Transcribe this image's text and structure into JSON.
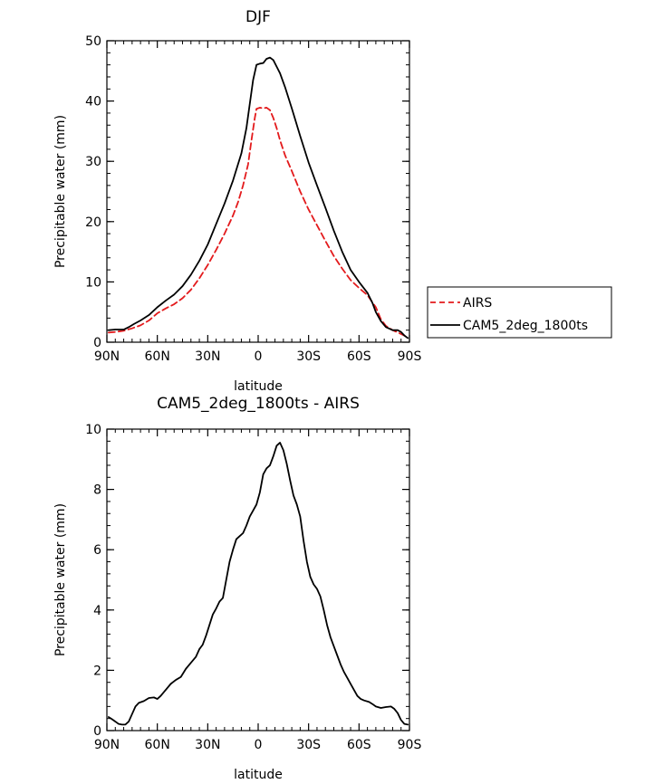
{
  "chart_data": [
    {
      "type": "line",
      "title": "DJF",
      "xlabel": "latitude",
      "ylabel": "Precipitable water (mm)",
      "xlim": [
        90,
        -90
      ],
      "ylim": [
        0,
        50
      ],
      "x_ticks": [
        {
          "value": 90,
          "label": "90N"
        },
        {
          "value": 60,
          "label": "60N"
        },
        {
          "value": 30,
          "label": "30N"
        },
        {
          "value": 0,
          "label": "0"
        },
        {
          "value": -30,
          "label": "30S"
        },
        {
          "value": -60,
          "label": "60S"
        },
        {
          "value": -90,
          "label": "90S"
        }
      ],
      "y_ticks": [
        0,
        10,
        20,
        30,
        40,
        50
      ],
      "legend_position": "right",
      "series": [
        {
          "name": "AIRS",
          "color": "#e31a1c",
          "dash": "dashed",
          "points": [
            [
              89,
              1.6
            ],
            [
              85,
              1.7
            ],
            [
              80,
              1.9
            ],
            [
              75,
              2.3
            ],
            [
              70,
              2.8
            ],
            [
              65,
              3.6
            ],
            [
              60,
              4.8
            ],
            [
              55,
              5.6
            ],
            [
              50,
              6.3
            ],
            [
              45,
              7.3
            ],
            [
              40,
              8.7
            ],
            [
              35,
              10.6
            ],
            [
              30,
              12.8
            ],
            [
              25,
              15.3
            ],
            [
              20,
              18.0
            ],
            [
              15,
              21.0
            ],
            [
              12,
              23.2
            ],
            [
              9,
              26.0
            ],
            [
              6,
              29.5
            ],
            [
              4,
              33.5
            ],
            [
              2,
              37.2
            ],
            [
              1,
              38.7
            ],
            [
              -1,
              38.9
            ],
            [
              -3,
              38.8
            ],
            [
              -5,
              38.9
            ],
            [
              -7,
              38.5
            ],
            [
              -9,
              37.2
            ],
            [
              -11,
              35.5
            ],
            [
              -13,
              33.5
            ],
            [
              -16,
              31.0
            ],
            [
              -20,
              28.4
            ],
            [
              -25,
              25.0
            ],
            [
              -30,
              22.0
            ],
            [
              -35,
              19.4
            ],
            [
              -40,
              16.8
            ],
            [
              -45,
              14.3
            ],
            [
              -50,
              12.2
            ],
            [
              -55,
              10.3
            ],
            [
              -60,
              9.0
            ],
            [
              -65,
              7.8
            ],
            [
              -70,
              5.8
            ],
            [
              -73,
              3.8
            ],
            [
              -76,
              2.7
            ],
            [
              -80,
              2.0
            ],
            [
              -84,
              1.5
            ],
            [
              -87,
              1.1
            ],
            [
              -89,
              0.8
            ]
          ]
        },
        {
          "name": "CAM5_2deg_1800ts",
          "color": "#000000",
          "dash": "solid",
          "points": [
            [
              89,
              2.0
            ],
            [
              85,
              2.1
            ],
            [
              80,
              2.1
            ],
            [
              77,
              2.5
            ],
            [
              74,
              3.0
            ],
            [
              70,
              3.6
            ],
            [
              65,
              4.5
            ],
            [
              60,
              5.8
            ],
            [
              55,
              6.9
            ],
            [
              50,
              7.9
            ],
            [
              45,
              9.3
            ],
            [
              40,
              11.2
            ],
            [
              35,
              13.5
            ],
            [
              30,
              16.2
            ],
            [
              25,
              19.6
            ],
            [
              20,
              23.0
            ],
            [
              15,
              26.8
            ],
            [
              10,
              31.3
            ],
            [
              7,
              35.5
            ],
            [
              5,
              39.5
            ],
            [
              3,
              43.5
            ],
            [
              1,
              46.0
            ],
            [
              -1,
              46.2
            ],
            [
              -3,
              46.3
            ],
            [
              -5,
              47.0
            ],
            [
              -7,
              47.2
            ],
            [
              -9,
              46.8
            ],
            [
              -11,
              45.7
            ],
            [
              -13,
              44.6
            ],
            [
              -16,
              42.3
            ],
            [
              -20,
              38.8
            ],
            [
              -25,
              34.2
            ],
            [
              -30,
              29.8
            ],
            [
              -35,
              26.0
            ],
            [
              -40,
              22.3
            ],
            [
              -45,
              18.5
            ],
            [
              -50,
              15.0
            ],
            [
              -55,
              12.0
            ],
            [
              -60,
              10.0
            ],
            [
              -65,
              8.2
            ],
            [
              -68,
              6.5
            ],
            [
              -70,
              5.0
            ],
            [
              -73,
              3.5
            ],
            [
              -76,
              2.5
            ],
            [
              -80,
              2.0
            ],
            [
              -83,
              2.0
            ],
            [
              -85,
              1.7
            ],
            [
              -87,
              1.1
            ],
            [
              -89,
              0.7
            ]
          ]
        }
      ]
    },
    {
      "type": "line",
      "title": "CAM5_2deg_1800ts - AIRS",
      "xlabel": "latitude",
      "ylabel": "Precipitable water (mm)",
      "xlim": [
        90,
        -90
      ],
      "ylim": [
        0,
        10
      ],
      "x_ticks": [
        {
          "value": 90,
          "label": "90N"
        },
        {
          "value": 60,
          "label": "60N"
        },
        {
          "value": 30,
          "label": "30N"
        },
        {
          "value": 0,
          "label": "0"
        },
        {
          "value": -30,
          "label": "30S"
        },
        {
          "value": -60,
          "label": "60S"
        },
        {
          "value": -90,
          "label": "90S"
        }
      ],
      "y_ticks": [
        0,
        2,
        4,
        6,
        8,
        10
      ],
      "series": [
        {
          "color": "#000000",
          "dash": "solid",
          "points": [
            [
              89,
              0.45
            ],
            [
              87,
              0.38
            ],
            [
              85,
              0.3
            ],
            [
              83,
              0.22
            ],
            [
              81,
              0.2
            ],
            [
              79,
              0.2
            ],
            [
              77,
              0.3
            ],
            [
              75,
              0.55
            ],
            [
              73,
              0.8
            ],
            [
              71,
              0.92
            ],
            [
              68,
              0.98
            ],
            [
              65,
              1.08
            ],
            [
              62,
              1.1
            ],
            [
              60,
              1.05
            ],
            [
              58,
              1.15
            ],
            [
              55,
              1.35
            ],
            [
              52,
              1.55
            ],
            [
              49,
              1.68
            ],
            [
              46,
              1.78
            ],
            [
              43,
              2.05
            ],
            [
              40,
              2.25
            ],
            [
              37,
              2.45
            ],
            [
              35,
              2.7
            ],
            [
              33,
              2.85
            ],
            [
              31,
              3.15
            ],
            [
              29,
              3.5
            ],
            [
              27,
              3.85
            ],
            [
              25,
              4.05
            ],
            [
              23,
              4.28
            ],
            [
              21,
              4.4
            ],
            [
              19,
              5.0
            ],
            [
              17,
              5.6
            ],
            [
              15,
              6.0
            ],
            [
              13,
              6.35
            ],
            [
              11,
              6.45
            ],
            [
              9,
              6.55
            ],
            [
              7,
              6.8
            ],
            [
              5,
              7.1
            ],
            [
              3,
              7.3
            ],
            [
              1,
              7.5
            ],
            [
              -1,
              7.9
            ],
            [
              -3,
              8.5
            ],
            [
              -5,
              8.7
            ],
            [
              -7,
              8.8
            ],
            [
              -9,
              9.1
            ],
            [
              -11,
              9.45
            ],
            [
              -13,
              9.55
            ],
            [
              -15,
              9.3
            ],
            [
              -17,
              8.85
            ],
            [
              -19,
              8.3
            ],
            [
              -21,
              7.8
            ],
            [
              -23,
              7.5
            ],
            [
              -25,
              7.1
            ],
            [
              -27,
              6.3
            ],
            [
              -29,
              5.6
            ],
            [
              -31,
              5.1
            ],
            [
              -33,
              4.85
            ],
            [
              -35,
              4.7
            ],
            [
              -37,
              4.45
            ],
            [
              -39,
              4.0
            ],
            [
              -41,
              3.5
            ],
            [
              -43,
              3.1
            ],
            [
              -45,
              2.8
            ],
            [
              -47,
              2.5
            ],
            [
              -49,
              2.2
            ],
            [
              -51,
              1.95
            ],
            [
              -53,
              1.75
            ],
            [
              -55,
              1.55
            ],
            [
              -57,
              1.35
            ],
            [
              -59,
              1.15
            ],
            [
              -61,
              1.05
            ],
            [
              -63,
              1.0
            ],
            [
              -66,
              0.95
            ],
            [
              -68,
              0.88
            ],
            [
              -70,
              0.8
            ],
            [
              -73,
              0.75
            ],
            [
              -76,
              0.78
            ],
            [
              -79,
              0.8
            ],
            [
              -81,
              0.72
            ],
            [
              -83,
              0.58
            ],
            [
              -85,
              0.35
            ],
            [
              -87,
              0.22
            ],
            [
              -89,
              0.2
            ]
          ]
        }
      ]
    }
  ]
}
